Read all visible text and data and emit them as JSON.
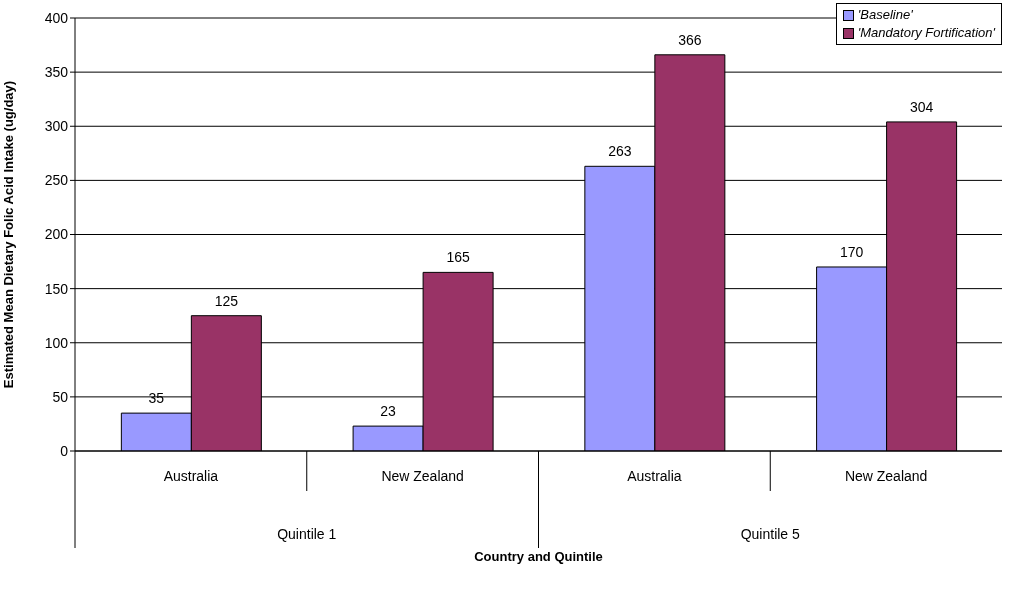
{
  "chart_data": {
    "type": "bar",
    "xlabel": "Country and Quintile",
    "ylabel": "Estimated Mean Dietary Folic Acid Intake (ug/day)",
    "categories": [
      "Australia",
      "New Zealand",
      "Australia",
      "New Zealand"
    ],
    "annotations": [
      "Quintile 1",
      "Quintile 5"
    ],
    "series": [
      {
        "name": "'Baseline'",
        "color": "#9999ff",
        "values": [
          35,
          23,
          263,
          170
        ]
      },
      {
        "name": "'Mandatory Fortification'",
        "color": "#993366",
        "values": [
          125,
          165,
          366,
          304
        ]
      }
    ],
    "ylim": [
      0,
      400
    ],
    "yticks": [
      0,
      50,
      100,
      150,
      200,
      250,
      300,
      350,
      400
    ],
    "grid": "y",
    "legend": "top right",
    "data_labels": true
  }
}
